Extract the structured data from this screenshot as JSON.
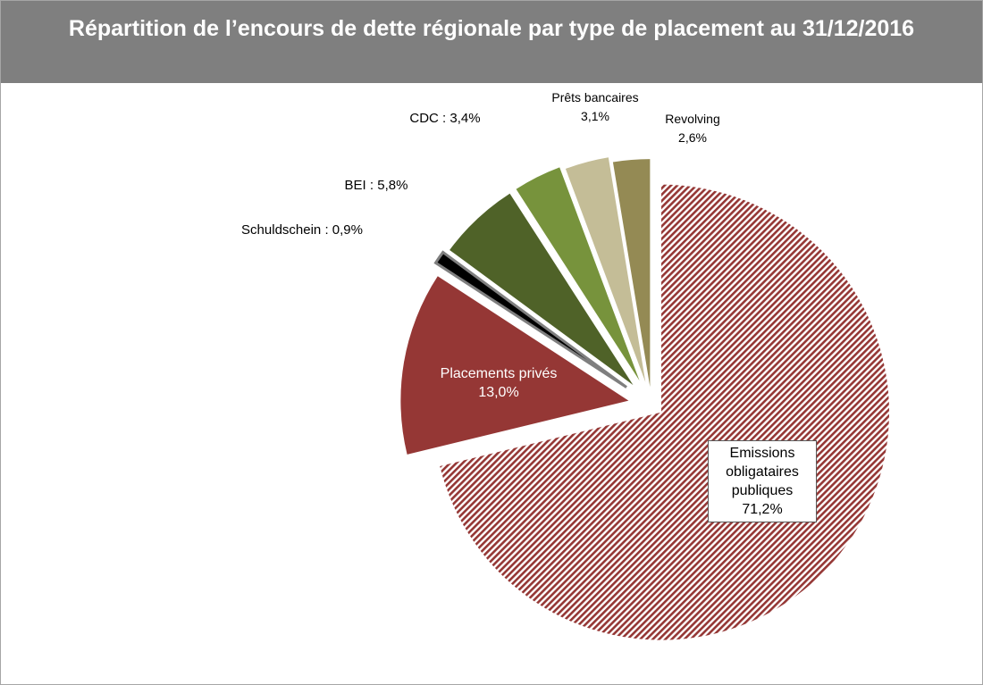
{
  "chart_data": {
    "type": "pie",
    "title": "Répartition de l’encours de dette régionale par type de placement au 31/12/2016",
    "categories": [
      "Emissions obligataires publiques",
      "Placements privés",
      "Schuldschein",
      "BEI",
      "CDC",
      "Prêts bancaires",
      "Revolving"
    ],
    "values": [
      71.2,
      13.0,
      0.9,
      5.8,
      3.4,
      3.1,
      2.6
    ],
    "value_labels": [
      "71,2%",
      "13,0%",
      "0,9%",
      "5,8%",
      "3,4%",
      "3,1%",
      "2,6%"
    ],
    "label_separator": " : ",
    "colors": [
      "#953735",
      "#953735",
      "#000000",
      "#4f6228",
      "#77933c",
      "#c4bd97",
      "#948a54"
    ]
  }
}
